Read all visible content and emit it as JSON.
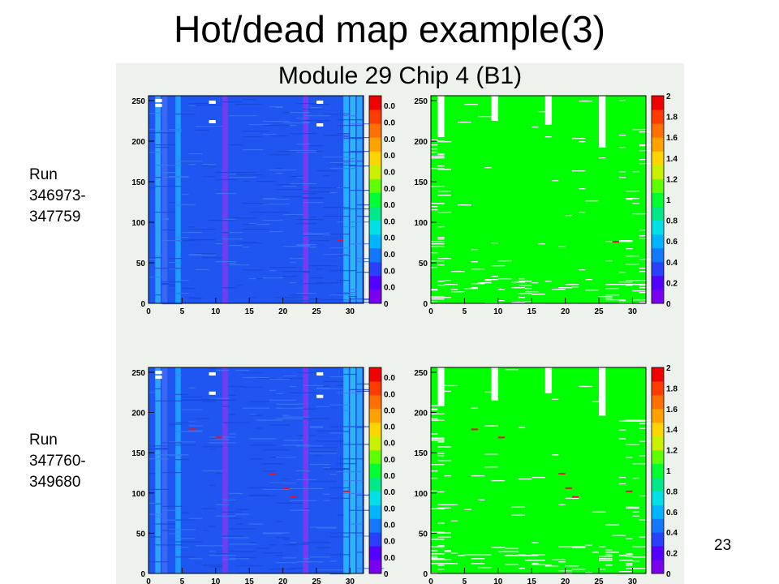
{
  "slide": {
    "title": "Hot/dead map example(3)",
    "subtitle": "Module 29 Chip 4 (B1)",
    "page_number": "23"
  },
  "run_labels": [
    {
      "text": "Run\n346973-\n347759"
    },
    {
      "text": "Run\n347760-\n349680"
    }
  ],
  "colors": {
    "panel_background": "#edf2ed",
    "occupancy_base": "#1f55f0",
    "status_green": "#00ff00",
    "dead_white": "#ffffff",
    "hot_red": "#e8102a",
    "palette": [
      "#7b00f0",
      "#5400ff",
      "#2a40ff",
      "#1478ff",
      "#00b4ff",
      "#00e0e6",
      "#00e88a",
      "#00ff30",
      "#60ff00",
      "#c8f000",
      "#ffd400",
      "#ffa200",
      "#ff7000",
      "#ff3c00",
      "#f00000"
    ]
  },
  "chart_data": [
    {
      "type": "heatmap",
      "description": "occupancy map, run 346973-347759",
      "xlim": [
        0,
        32
      ],
      "ylim": [
        0,
        256
      ],
      "x_ticks": [
        "0",
        "5",
        "10",
        "15",
        "20",
        "25",
        "30"
      ],
      "y_ticks": [
        "0",
        "50",
        "100",
        "150",
        "200",
        "250"
      ],
      "colorbar_ticks": [
        "0",
        "0.0",
        "0.0",
        "0.0",
        "0.0",
        "0.0",
        "0.0",
        "0.0",
        "0.0",
        "0.0",
        "0.0",
        "0.0",
        "0.0"
      ],
      "dead_columns": [],
      "hot_pixels": [
        {
          "x": 28,
          "y": 78
        }
      ]
    },
    {
      "type": "heatmap",
      "description": "hot/dead status map, run 346973-347759",
      "xlim": [
        0,
        32
      ],
      "ylim": [
        0,
        256
      ],
      "x_ticks": [
        "0",
        "5",
        "10",
        "15",
        "20",
        "25",
        "30"
      ],
      "y_ticks": [
        "0",
        "50",
        "100",
        "150",
        "200",
        "250"
      ],
      "colorbar_ticks": [
        "0",
        "0.2",
        "0.4",
        "0.6",
        "0.8",
        "1",
        "1.2",
        "1.4",
        "1.6",
        "1.8",
        "2"
      ],
      "dead_columns": [
        {
          "x": 1,
          "from": 205
        },
        {
          "x": 9,
          "from": 225
        },
        {
          "x": 17,
          "from": 220
        },
        {
          "x": 25,
          "from": 192
        }
      ],
      "hot_pixels": [
        {
          "x": 27,
          "y": 77
        }
      ]
    },
    {
      "type": "heatmap",
      "description": "occupancy map, run 347760-349680",
      "xlim": [
        0,
        32
      ],
      "ylim": [
        0,
        256
      ],
      "x_ticks": [
        "0",
        "5",
        "10",
        "15",
        "20",
        "25",
        "30"
      ],
      "y_ticks": [
        "0",
        "50",
        "100",
        "150",
        "200",
        "250"
      ],
      "colorbar_ticks": [
        "0",
        "0.0",
        "0.0",
        "0.0",
        "0.0",
        "0.0",
        "0.0",
        "0.0",
        "0.0",
        "0.0",
        "0.0",
        "0.0",
        "0.0"
      ],
      "dead_columns": [],
      "hot_pixels": [
        {
          "x": 6,
          "y": 180
        },
        {
          "x": 10,
          "y": 170
        },
        {
          "x": 18,
          "y": 125
        },
        {
          "x": 20,
          "y": 107
        },
        {
          "x": 21,
          "y": 96
        },
        {
          "x": 29,
          "y": 103
        }
      ]
    },
    {
      "type": "heatmap",
      "description": "hot/dead status map, run 347760-349680",
      "xlim": [
        0,
        32
      ],
      "ylim": [
        0,
        256
      ],
      "x_ticks": [
        "0",
        "5",
        "10",
        "15",
        "20",
        "25",
        "30"
      ],
      "y_ticks": [
        "0",
        "50",
        "100",
        "150",
        "200",
        "250"
      ],
      "colorbar_ticks": [
        "0",
        "0.2",
        "0.4",
        "0.6",
        "0.8",
        "1",
        "1.2",
        "1.4",
        "1.6",
        "1.8",
        "2"
      ],
      "dead_columns": [
        {
          "x": 1,
          "from": 208
        },
        {
          "x": 9,
          "from": 215
        },
        {
          "x": 17,
          "from": 224
        },
        {
          "x": 25,
          "from": 196
        }
      ],
      "hot_pixels": [
        {
          "x": 6,
          "y": 180
        },
        {
          "x": 10,
          "y": 170
        },
        {
          "x": 19,
          "y": 125
        },
        {
          "x": 20,
          "y": 107
        },
        {
          "x": 21,
          "y": 96
        },
        {
          "x": 29,
          "y": 103
        }
      ]
    }
  ]
}
